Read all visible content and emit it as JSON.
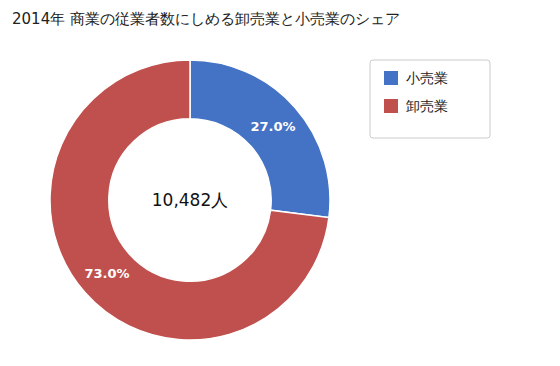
{
  "chart_data": {
    "type": "donut",
    "title": "2014年 商業の従業者数にしめる卸売業と小売業のシェア",
    "categories": [
      "小売業",
      "卸売業"
    ],
    "values": [
      27.0,
      73.0
    ],
    "value_labels": [
      "27.0%",
      "73.0%"
    ],
    "data_labels": true,
    "colors": [
      "#4472C4",
      "#C0504D"
    ],
    "annotations": [
      "10,482人"
    ],
    "legend": "right"
  }
}
